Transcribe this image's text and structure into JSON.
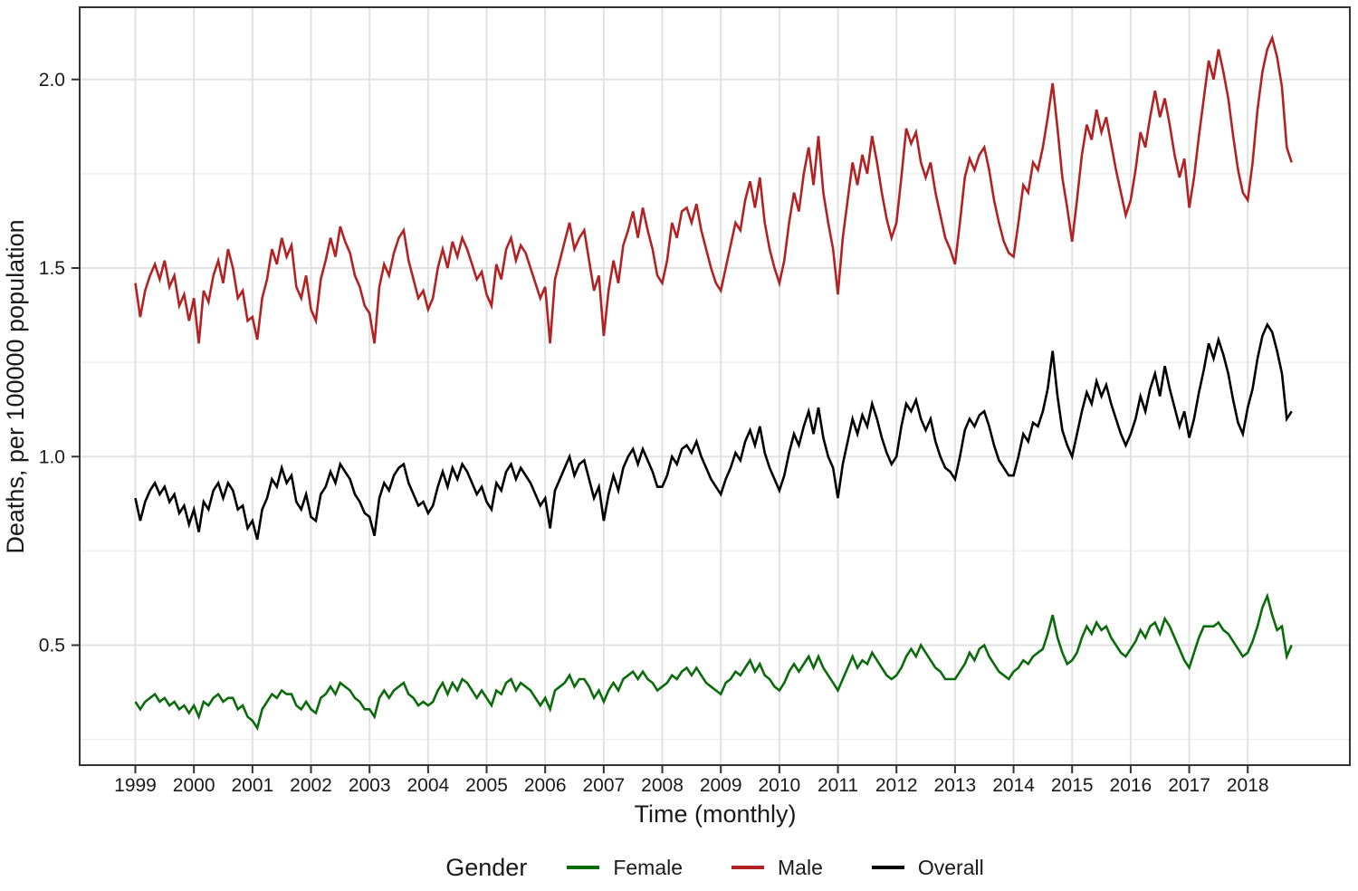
{
  "figure": {
    "xlabel": "Time (monthly)",
    "ylabel": "Deaths, per 100000 population",
    "legend_title": "Gender",
    "background_color": "#ffffff",
    "panel_border_color": "#333333",
    "grid_major_color": "#e2e2e2",
    "grid_minor_color": "#efefef",
    "tick_color": "#333333",
    "text_color": "#1a1a1a"
  },
  "axes": {
    "x_tick_labels": [
      "1999",
      "2000",
      "2001",
      "2002",
      "2003",
      "2004",
      "2005",
      "2006",
      "2007",
      "2008",
      "2009",
      "2010",
      "2011",
      "2012",
      "2013",
      "2014",
      "2015",
      "2016",
      "2017",
      "2018"
    ],
    "y_tick_labels": [
      "0.5",
      "1.0",
      "1.5",
      "2.0"
    ]
  },
  "chart_data": {
    "type": "line",
    "title": "",
    "xlabel": "Time (monthly)",
    "ylabel": "Deaths, per 100000 population",
    "legend_title": "Gender",
    "legend_position": "bottom",
    "grid": true,
    "frequency": "monthly",
    "x_start": "1999-01",
    "x_end": "2018-10",
    "x_tick_years": [
      1999,
      2000,
      2001,
      2002,
      2003,
      2004,
      2005,
      2006,
      2007,
      2008,
      2009,
      2010,
      2011,
      2012,
      2013,
      2014,
      2015,
      2016,
      2017,
      2018
    ],
    "y_tick_values": [
      0.5,
      1.0,
      1.5,
      2.0
    ],
    "y_minor_gridlines": [
      0.25,
      0.75,
      1.25,
      1.75
    ],
    "xlim_years": [
      1998.05,
      2019.85
    ],
    "ylim": [
      0.18,
      2.19
    ],
    "series": [
      {
        "name": "Female",
        "color": "#0a6b0a",
        "values": [
          0.35,
          0.33,
          0.35,
          0.36,
          0.37,
          0.35,
          0.36,
          0.34,
          0.35,
          0.33,
          0.34,
          0.32,
          0.34,
          0.31,
          0.35,
          0.34,
          0.36,
          0.37,
          0.35,
          0.36,
          0.36,
          0.33,
          0.34,
          0.31,
          0.3,
          0.28,
          0.33,
          0.35,
          0.37,
          0.36,
          0.38,
          0.37,
          0.37,
          0.34,
          0.33,
          0.35,
          0.33,
          0.32,
          0.36,
          0.37,
          0.39,
          0.37,
          0.4,
          0.39,
          0.38,
          0.36,
          0.35,
          0.33,
          0.33,
          0.31,
          0.36,
          0.38,
          0.36,
          0.38,
          0.39,
          0.4,
          0.37,
          0.36,
          0.34,
          0.35,
          0.34,
          0.35,
          0.38,
          0.4,
          0.37,
          0.4,
          0.38,
          0.41,
          0.4,
          0.38,
          0.36,
          0.38,
          0.36,
          0.34,
          0.38,
          0.37,
          0.4,
          0.41,
          0.38,
          0.4,
          0.39,
          0.38,
          0.36,
          0.34,
          0.36,
          0.33,
          0.38,
          0.39,
          0.4,
          0.42,
          0.39,
          0.41,
          0.41,
          0.39,
          0.36,
          0.38,
          0.35,
          0.38,
          0.4,
          0.38,
          0.41,
          0.42,
          0.43,
          0.41,
          0.43,
          0.41,
          0.4,
          0.38,
          0.39,
          0.4,
          0.42,
          0.41,
          0.43,
          0.44,
          0.42,
          0.44,
          0.42,
          0.4,
          0.39,
          0.38,
          0.37,
          0.4,
          0.41,
          0.43,
          0.42,
          0.44,
          0.46,
          0.43,
          0.45,
          0.42,
          0.41,
          0.39,
          0.38,
          0.4,
          0.43,
          0.45,
          0.43,
          0.45,
          0.47,
          0.44,
          0.47,
          0.44,
          0.42,
          0.4,
          0.38,
          0.41,
          0.44,
          0.47,
          0.44,
          0.46,
          0.45,
          0.48,
          0.46,
          0.44,
          0.42,
          0.41,
          0.42,
          0.44,
          0.47,
          0.49,
          0.47,
          0.5,
          0.48,
          0.46,
          0.44,
          0.43,
          0.41,
          0.41,
          0.41,
          0.43,
          0.45,
          0.48,
          0.46,
          0.49,
          0.5,
          0.47,
          0.45,
          0.43,
          0.42,
          0.41,
          0.43,
          0.44,
          0.46,
          0.45,
          0.47,
          0.48,
          0.49,
          0.53,
          0.58,
          0.52,
          0.48,
          0.45,
          0.46,
          0.48,
          0.52,
          0.55,
          0.53,
          0.56,
          0.54,
          0.55,
          0.52,
          0.5,
          0.48,
          0.47,
          0.49,
          0.51,
          0.54,
          0.52,
          0.55,
          0.56,
          0.53,
          0.57,
          0.55,
          0.52,
          0.49,
          0.46,
          0.44,
          0.48,
          0.52,
          0.55,
          0.55,
          0.55,
          0.56,
          0.54,
          0.53,
          0.51,
          0.49,
          0.47,
          0.48,
          0.51,
          0.55,
          0.6,
          0.63,
          0.58,
          0.54,
          0.55,
          0.47,
          0.5
        ]
      },
      {
        "name": "Male",
        "color": "#b22222",
        "values": [
          1.46,
          1.37,
          1.44,
          1.48,
          1.51,
          1.47,
          1.52,
          1.45,
          1.48,
          1.4,
          1.43,
          1.36,
          1.42,
          1.3,
          1.44,
          1.41,
          1.48,
          1.52,
          1.46,
          1.55,
          1.5,
          1.42,
          1.44,
          1.36,
          1.37,
          1.31,
          1.42,
          1.47,
          1.55,
          1.51,
          1.58,
          1.53,
          1.56,
          1.45,
          1.42,
          1.48,
          1.39,
          1.36,
          1.47,
          1.52,
          1.58,
          1.53,
          1.61,
          1.57,
          1.54,
          1.48,
          1.45,
          1.4,
          1.38,
          1.3,
          1.45,
          1.51,
          1.48,
          1.54,
          1.58,
          1.6,
          1.52,
          1.47,
          1.42,
          1.44,
          1.39,
          1.42,
          1.5,
          1.55,
          1.5,
          1.57,
          1.53,
          1.58,
          1.55,
          1.51,
          1.47,
          1.49,
          1.43,
          1.4,
          1.51,
          1.47,
          1.55,
          1.58,
          1.52,
          1.56,
          1.54,
          1.5,
          1.46,
          1.42,
          1.45,
          1.3,
          1.47,
          1.52,
          1.57,
          1.62,
          1.55,
          1.58,
          1.6,
          1.52,
          1.44,
          1.48,
          1.32,
          1.44,
          1.52,
          1.46,
          1.56,
          1.6,
          1.65,
          1.58,
          1.66,
          1.6,
          1.55,
          1.48,
          1.46,
          1.52,
          1.62,
          1.58,
          1.65,
          1.66,
          1.62,
          1.67,
          1.6,
          1.55,
          1.5,
          1.46,
          1.44,
          1.5,
          1.56,
          1.62,
          1.6,
          1.68,
          1.73,
          1.66,
          1.74,
          1.62,
          1.55,
          1.5,
          1.46,
          1.52,
          1.62,
          1.7,
          1.65,
          1.75,
          1.82,
          1.72,
          1.85,
          1.7,
          1.62,
          1.55,
          1.43,
          1.58,
          1.68,
          1.78,
          1.72,
          1.8,
          1.75,
          1.85,
          1.78,
          1.7,
          1.63,
          1.58,
          1.62,
          1.74,
          1.87,
          1.83,
          1.86,
          1.78,
          1.74,
          1.78,
          1.7,
          1.64,
          1.58,
          1.55,
          1.51,
          1.62,
          1.74,
          1.79,
          1.76,
          1.8,
          1.82,
          1.76,
          1.68,
          1.62,
          1.57,
          1.54,
          1.53,
          1.62,
          1.72,
          1.7,
          1.78,
          1.76,
          1.82,
          1.9,
          1.99,
          1.87,
          1.74,
          1.66,
          1.57,
          1.68,
          1.8,
          1.88,
          1.84,
          1.92,
          1.86,
          1.9,
          1.83,
          1.76,
          1.7,
          1.64,
          1.68,
          1.76,
          1.86,
          1.82,
          1.9,
          1.97,
          1.9,
          1.95,
          1.88,
          1.8,
          1.74,
          1.79,
          1.66,
          1.74,
          1.85,
          1.95,
          2.05,
          2.0,
          2.08,
          2.02,
          1.95,
          1.85,
          1.76,
          1.7,
          1.68,
          1.78,
          1.92,
          2.02,
          2.08,
          2.11,
          2.06,
          1.98,
          1.82,
          1.78
        ]
      },
      {
        "name": "Overall",
        "color": "#000000",
        "values": [
          0.89,
          0.83,
          0.88,
          0.91,
          0.93,
          0.9,
          0.92,
          0.88,
          0.9,
          0.85,
          0.87,
          0.82,
          0.86,
          0.8,
          0.88,
          0.86,
          0.91,
          0.93,
          0.89,
          0.93,
          0.91,
          0.86,
          0.87,
          0.81,
          0.83,
          0.78,
          0.86,
          0.89,
          0.94,
          0.92,
          0.97,
          0.93,
          0.95,
          0.88,
          0.86,
          0.9,
          0.84,
          0.83,
          0.9,
          0.92,
          0.96,
          0.93,
          0.98,
          0.96,
          0.94,
          0.9,
          0.88,
          0.85,
          0.84,
          0.79,
          0.89,
          0.93,
          0.91,
          0.95,
          0.97,
          0.98,
          0.93,
          0.9,
          0.87,
          0.88,
          0.85,
          0.87,
          0.92,
          0.96,
          0.92,
          0.97,
          0.94,
          0.98,
          0.96,
          0.93,
          0.9,
          0.92,
          0.88,
          0.86,
          0.93,
          0.91,
          0.96,
          0.98,
          0.94,
          0.97,
          0.95,
          0.93,
          0.9,
          0.87,
          0.89,
          0.81,
          0.91,
          0.94,
          0.97,
          1.0,
          0.95,
          0.98,
          0.99,
          0.94,
          0.89,
          0.92,
          0.83,
          0.9,
          0.95,
          0.91,
          0.97,
          1.0,
          1.02,
          0.98,
          1.02,
          0.99,
          0.96,
          0.92,
          0.92,
          0.95,
          1.0,
          0.98,
          1.02,
          1.03,
          1.01,
          1.04,
          1.0,
          0.97,
          0.94,
          0.92,
          0.9,
          0.94,
          0.97,
          1.01,
          0.99,
          1.04,
          1.07,
          1.03,
          1.08,
          1.01,
          0.97,
          0.94,
          0.91,
          0.95,
          1.01,
          1.06,
          1.03,
          1.08,
          1.12,
          1.06,
          1.13,
          1.05,
          1.0,
          0.97,
          0.89,
          0.98,
          1.04,
          1.1,
          1.06,
          1.11,
          1.08,
          1.14,
          1.1,
          1.05,
          1.01,
          0.98,
          1.0,
          1.08,
          1.14,
          1.12,
          1.15,
          1.1,
          1.07,
          1.1,
          1.04,
          1.0,
          0.97,
          0.96,
          0.94,
          1.0,
          1.07,
          1.1,
          1.08,
          1.11,
          1.12,
          1.08,
          1.03,
          0.99,
          0.97,
          0.95,
          0.95,
          1.0,
          1.06,
          1.04,
          1.09,
          1.08,
          1.12,
          1.18,
          1.28,
          1.16,
          1.07,
          1.03,
          1.0,
          1.06,
          1.12,
          1.17,
          1.14,
          1.2,
          1.16,
          1.19,
          1.14,
          1.1,
          1.06,
          1.03,
          1.06,
          1.1,
          1.16,
          1.12,
          1.18,
          1.22,
          1.16,
          1.24,
          1.18,
          1.13,
          1.08,
          1.12,
          1.05,
          1.1,
          1.17,
          1.23,
          1.3,
          1.26,
          1.31,
          1.27,
          1.22,
          1.15,
          1.09,
          1.06,
          1.13,
          1.18,
          1.26,
          1.32,
          1.35,
          1.33,
          1.28,
          1.22,
          1.1,
          1.12
        ]
      }
    ]
  }
}
